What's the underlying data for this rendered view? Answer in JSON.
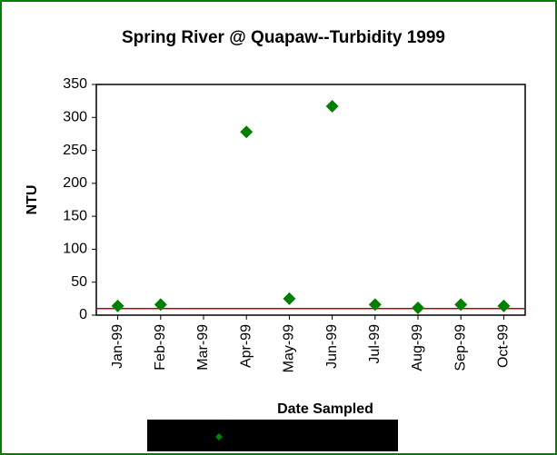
{
  "chart_data": {
    "type": "scatter",
    "title": "Spring River @ Quapaw--Turbidity 1999",
    "x_label": "Date Sampled",
    "y_label": "NTU",
    "categories": [
      "Jan-99",
      "Feb-99",
      "Mar-99",
      "Apr-99",
      "May-99",
      "Jun-99",
      "Jul-99",
      "Aug-99",
      "Sep-99",
      "Oct-99"
    ],
    "values": [
      14,
      16,
      null,
      278,
      25,
      317,
      16,
      11,
      16,
      14
    ],
    "color": "#008000",
    "reference": 10,
    "reference_color": "#c00000",
    "ylim": [
      0,
      350
    ],
    "yticks": [
      0,
      50,
      100,
      150,
      200,
      250,
      300,
      350
    ],
    "grid": false
  }
}
